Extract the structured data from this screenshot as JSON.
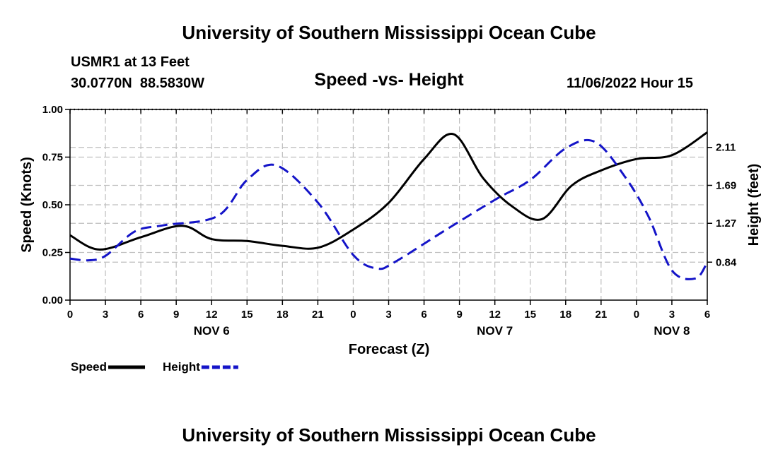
{
  "header": {
    "title": "University of Southern Mississippi Ocean Cube",
    "station": "USMR1 at 13 Feet",
    "coords": "30.0770N  88.5830W",
    "datetime": "11/06/2022 Hour 15"
  },
  "footer": {
    "title": "University of Southern Mississippi Ocean Cube"
  },
  "colors": {
    "speed": "#000000",
    "height": "#1414c8",
    "grid": "#bfbfbf"
  },
  "chart_data": {
    "type": "line",
    "title": "Speed -vs- Height",
    "xlabel": "Forecast (Z)",
    "ylabel": "Speed (Knots)",
    "y2label": "Height (feet)",
    "xlim": [
      0,
      54
    ],
    "ylim": [
      0,
      1
    ],
    "y2lim": [
      0.42,
      2.53
    ],
    "x_ticks": [
      0,
      3,
      6,
      9,
      12,
      15,
      18,
      21,
      24,
      27,
      30,
      33,
      36,
      39,
      42,
      45,
      48,
      51,
      54
    ],
    "x_tick_labels": [
      "0",
      "3",
      "6",
      "9",
      "12",
      "15",
      "18",
      "21",
      "0",
      "3",
      "6",
      "9",
      "12",
      "15",
      "18",
      "21",
      "0",
      "3",
      "6"
    ],
    "day_labels": [
      {
        "x": 12,
        "label": "NOV 6"
      },
      {
        "x": 36,
        "label": "NOV 7"
      },
      {
        "x": 51,
        "label": "NOV 8"
      }
    ],
    "y_ticks": [
      0,
      0.25,
      0.5,
      0.75,
      1.0
    ],
    "y_tick_labels": [
      "0.00",
      "0.25",
      "0.50",
      "0.75",
      "1.00"
    ],
    "y2_ticks": [
      0.84,
      1.27,
      1.69,
      2.11
    ],
    "y2_tick_labels": [
      "0.84",
      "1.27",
      "1.69",
      "2.11"
    ],
    "grid": true,
    "series": [
      {
        "name": "Speed",
        "axis": "left",
        "style": "solid",
        "x": [
          0,
          2.5,
          6,
          9.5,
          12,
          15,
          18,
          21,
          24,
          27,
          30,
          32.5,
          35,
          37.5,
          40,
          42.5,
          45,
          48,
          51,
          54
        ],
        "y": [
          0.34,
          0.265,
          0.33,
          0.39,
          0.32,
          0.31,
          0.285,
          0.275,
          0.37,
          0.51,
          0.74,
          0.87,
          0.64,
          0.49,
          0.425,
          0.6,
          0.68,
          0.74,
          0.76,
          0.88
        ]
      },
      {
        "name": "Height",
        "axis": "right",
        "style": "dashed",
        "x": [
          0,
          1.5,
          3,
          5.5,
          8,
          12.5,
          15,
          17.5,
          21,
          24,
          26,
          27.5,
          32,
          36,
          39,
          42,
          44.5,
          47,
          49,
          51,
          53,
          54
        ],
        "y": [
          0.88,
          0.86,
          0.91,
          1.18,
          1.25,
          1.35,
          1.75,
          1.91,
          1.5,
          0.92,
          0.77,
          0.84,
          1.21,
          1.53,
          1.75,
          2.1,
          2.17,
          1.79,
          1.35,
          0.75,
          0.66,
          0.84
        ]
      }
    ],
    "legend": {
      "position": "bottom-left",
      "entries": [
        {
          "label": "Speed",
          "style": "solid"
        },
        {
          "label": "Height",
          "style": "dashed"
        }
      ]
    }
  }
}
